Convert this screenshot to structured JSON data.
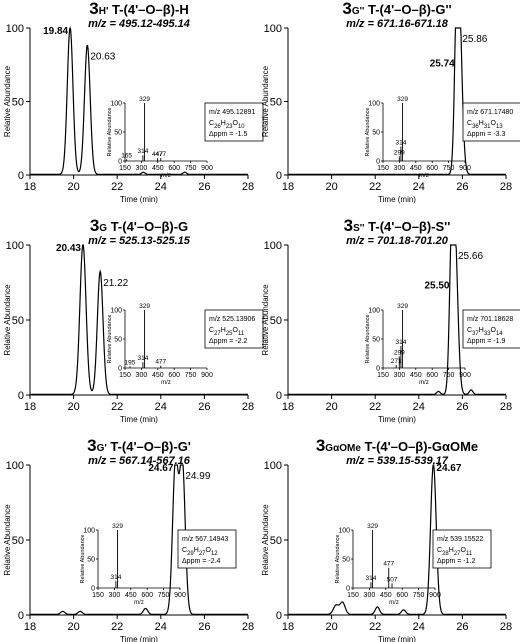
{
  "figure": {
    "x_axis_label": "Time (min)",
    "y_axis_label": "Relative Abundance",
    "inset_x_label": "m/z"
  },
  "chart_data": [
    {
      "type": "line",
      "title_prefix": "3",
      "title_sub": "H'",
      "title_suffix": " T-(4'–O–β)-H",
      "subtitle": "m/z = 495.12-495.14",
      "xlim": [
        18,
        28
      ],
      "ylim": [
        0,
        100
      ],
      "xticks": [
        18,
        20,
        22,
        24,
        26,
        28
      ],
      "yticks": [
        0,
        50,
        100
      ],
      "series": [
        {
          "peaks": [
            [
              19.84,
              100,
              0.13
            ],
            [
              20.63,
              88,
              0.13
            ],
            [
              23.2,
              1.5,
              0.08
            ],
            [
              25.1,
              1.5,
              0.08
            ]
          ]
        }
      ],
      "peak_labels": [
        {
          "x": 19.84,
          "text": "19.84",
          "bold": true
        },
        {
          "x": 20.63,
          "text": "20.63",
          "bold": false
        }
      ],
      "inset": {
        "xlim": [
          150,
          900
        ],
        "ylim": [
          0,
          100
        ],
        "xticks": [
          150,
          300,
          450,
          600,
          750,
          900
        ],
        "yticks": [
          0,
          50,
          100
        ],
        "sticks": [
          [
            165,
            3
          ],
          [
            314,
            10
          ],
          [
            329,
            100
          ],
          [
            447,
            5
          ],
          [
            477,
            5
          ]
        ],
        "stick_labels": [
          "165",
          "314",
          "329",
          "447",
          "477"
        ],
        "info": [
          "m/z 495.12891",
          "C26H23O10",
          "Δppm = -1.5"
        ]
      }
    },
    {
      "type": "line",
      "title_prefix": "3",
      "title_sub": "G''",
      "title_suffix": " T-(4'–O–β)-G''",
      "subtitle": "m/z = 671.16-671.18",
      "xlim": [
        18,
        28
      ],
      "ylim": [
        0,
        100
      ],
      "xticks": [
        18,
        20,
        22,
        24,
        26,
        28
      ],
      "yticks": [
        0,
        50,
        100
      ],
      "series": [
        {
          "peaks": [
            [
              25.74,
              78,
              0.1
            ],
            [
              25.86,
              100,
              0.13
            ]
          ]
        }
      ],
      "peak_labels": [
        {
          "x": 25.74,
          "text": "25.74",
          "bold": true
        },
        {
          "x": 25.86,
          "text": "25.86",
          "bold": false
        }
      ],
      "inset": {
        "xlim": [
          150,
          900
        ],
        "ylim": [
          0,
          100
        ],
        "xticks": [
          150,
          300,
          450,
          600,
          750,
          900
        ],
        "yticks": [
          0,
          50,
          100
        ],
        "sticks": [
          [
            299,
            8
          ],
          [
            314,
            25
          ],
          [
            329,
            100
          ]
        ],
        "stick_labels": [
          "299",
          "314",
          "329"
        ],
        "info": [
          "m/z 671.17480",
          "C36H31O13",
          "Δppm = -3.3"
        ]
      }
    },
    {
      "type": "line",
      "title_prefix": "3",
      "title_sub": "G",
      "title_suffix": " T-(4'–O–β)-G",
      "subtitle": "m/z = 525.13-525.15",
      "xlim": [
        18,
        28
      ],
      "ylim": [
        0,
        100
      ],
      "xticks": [
        18,
        20,
        22,
        24,
        26,
        28
      ],
      "yticks": [
        0,
        50,
        100
      ],
      "series": [
        {
          "peaks": [
            [
              20.43,
              100,
              0.14
            ],
            [
              21.22,
              82,
              0.13
            ]
          ]
        }
      ],
      "peak_labels": [
        {
          "x": 20.43,
          "text": "20.43",
          "bold": true
        },
        {
          "x": 21.22,
          "text": "21.22",
          "bold": false
        }
      ],
      "inset": {
        "xlim": [
          150,
          900
        ],
        "ylim": [
          0,
          100
        ],
        "xticks": [
          150,
          300,
          450,
          600,
          750,
          900
        ],
        "yticks": [
          0,
          50,
          100
        ],
        "sticks": [
          [
            195,
            3
          ],
          [
            314,
            10
          ],
          [
            329,
            100
          ],
          [
            477,
            4
          ]
        ],
        "stick_labels": [
          "195",
          "314",
          "329",
          "477"
        ],
        "info": [
          "m/z 525.13906",
          "C27H25O11",
          "Δppm = -2.2"
        ]
      }
    },
    {
      "type": "line",
      "title_prefix": "3",
      "title_sub": "S''",
      "title_suffix": " T-(4'–O–β)-S''",
      "subtitle": "m/z = 701.18-701.20",
      "xlim": [
        18,
        28
      ],
      "ylim": [
        0,
        100
      ],
      "xticks": [
        18,
        20,
        22,
        24,
        26,
        28
      ],
      "yticks": [
        0,
        50,
        100
      ],
      "series": [
        {
          "peaks": [
            [
              25.5,
              75,
              0.1
            ],
            [
              25.66,
              100,
              0.13
            ],
            [
              24.9,
              2,
              0.08
            ],
            [
              26.4,
              3,
              0.08
            ]
          ]
        }
      ],
      "peak_labels": [
        {
          "x": 25.5,
          "text": "25.50",
          "bold": true
        },
        {
          "x": 25.66,
          "text": "25.66",
          "bold": false
        }
      ],
      "inset": {
        "xlim": [
          150,
          900
        ],
        "ylim": [
          0,
          100
        ],
        "xticks": [
          150,
          300,
          450,
          600,
          750,
          900
        ],
        "yticks": [
          0,
          50,
          100
        ],
        "sticks": [
          [
            271,
            5
          ],
          [
            299,
            20
          ],
          [
            314,
            38
          ],
          [
            329,
            100
          ]
        ],
        "stick_labels": [
          "271",
          "299",
          "314",
          "329"
        ],
        "info": [
          "m/z 701.18628",
          "C37H33O14",
          "Δppm = -1.9"
        ]
      }
    },
    {
      "type": "line",
      "title_prefix": "3",
      "title_sub": "G'",
      "title_suffix": " T-(4'–O–β)-G'",
      "subtitle": "m/z = 567.14-567.16",
      "xlim": [
        18,
        28
      ],
      "ylim": [
        0,
        100
      ],
      "xticks": [
        18,
        20,
        22,
        24,
        26,
        28
      ],
      "yticks": [
        0,
        50,
        100
      ],
      "series": [
        {
          "peaks": [
            [
              24.67,
              100,
              0.13
            ],
            [
              24.99,
              100,
              0.13
            ],
            [
              19.5,
              2,
              0.1
            ],
            [
              20.3,
              2,
              0.1
            ],
            [
              23.3,
              4,
              0.1
            ]
          ]
        }
      ],
      "peak_labels": [
        {
          "x": 24.67,
          "text": "24.67",
          "bold": true
        },
        {
          "x": 24.99,
          "text": "24.99",
          "bold": false
        }
      ],
      "inset": {
        "xlim": [
          150,
          900
        ],
        "ylim": [
          0,
          100
        ],
        "xticks": [
          150,
          300,
          450,
          600,
          750,
          900
        ],
        "yticks": [
          0,
          50,
          100
        ],
        "sticks": [
          [
            314,
            12
          ],
          [
            329,
            100
          ]
        ],
        "stick_labels": [
          "314",
          "329"
        ],
        "info": [
          "m/z 567.14943",
          "C29H27O12",
          "Δppm = -2.4"
        ]
      }
    },
    {
      "type": "line",
      "title_prefix": "3",
      "title_sub": "GαOMe",
      "title_suffix": " T-(4'–O–β)-GαOMe",
      "subtitle": "m/z = 539.15-539.17",
      "xlim": [
        18,
        28
      ],
      "ylim": [
        0,
        100
      ],
      "xticks": [
        18,
        20,
        22,
        24,
        26,
        28
      ],
      "yticks": [
        0,
        50,
        100
      ],
      "series": [
        {
          "peaks": [
            [
              24.67,
              100,
              0.13
            ],
            [
              20.2,
              6,
              0.12
            ],
            [
              20.5,
              8,
              0.12
            ],
            [
              22.1,
              5,
              0.1
            ],
            [
              23.3,
              3,
              0.1
            ]
          ]
        }
      ],
      "peak_labels": [
        {
          "x": 24.67,
          "text": "24.67",
          "bold": true
        }
      ],
      "inset": {
        "xlim": [
          150,
          900
        ],
        "ylim": [
          0,
          100
        ],
        "xticks": [
          150,
          300,
          450,
          600,
          750,
          900
        ],
        "yticks": [
          0,
          50,
          100
        ],
        "sticks": [
          [
            314,
            10
          ],
          [
            329,
            100
          ],
          [
            477,
            35
          ],
          [
            507,
            8
          ]
        ],
        "stick_labels": [
          "314",
          "329",
          "477",
          "507"
        ],
        "info": [
          "m/z 539.15522",
          "C28H27O11",
          "Δppm = -1.2"
        ]
      }
    }
  ]
}
